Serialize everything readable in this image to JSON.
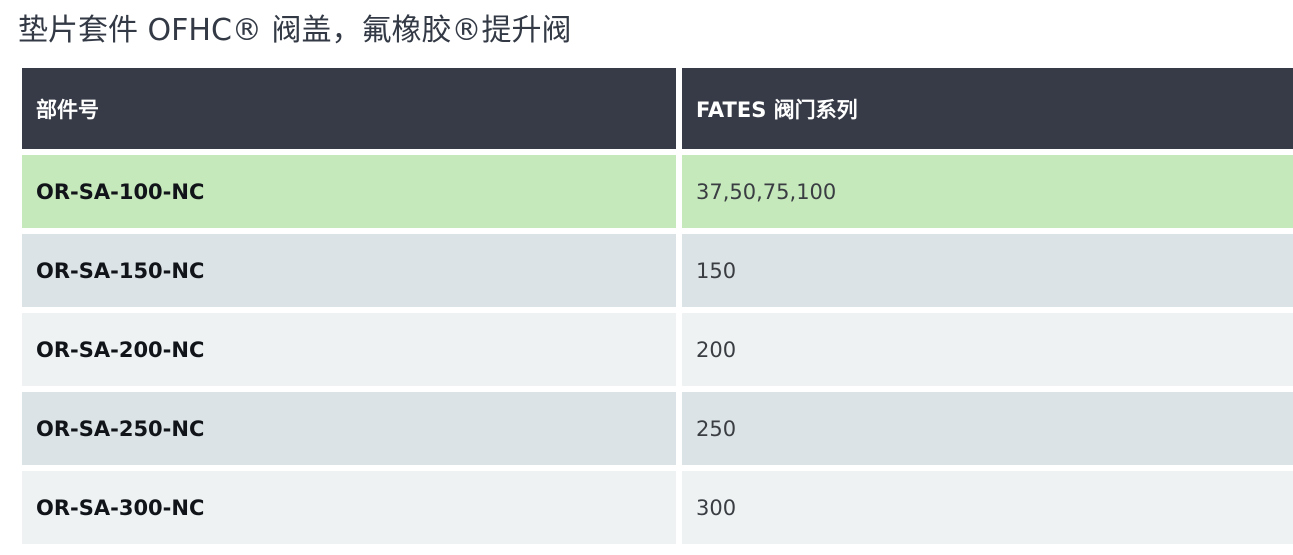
{
  "title": "垫片套件 OFHC® 阀盖，氟橡胶®提升阀",
  "table": {
    "headers": [
      "部件号",
      "FATES 阀门系列"
    ],
    "rows": [
      {
        "part": "OR-SA-100-NC",
        "series": "37,50,75,100",
        "highlighted": true
      },
      {
        "part": "OR-SA-150-NC",
        "series": "150",
        "highlighted": false
      },
      {
        "part": "OR-SA-200-NC",
        "series": "200",
        "highlighted": false
      },
      {
        "part": "OR-SA-250-NC",
        "series": "250",
        "highlighted": false
      },
      {
        "part": "OR-SA-300-NC",
        "series": "300",
        "highlighted": false
      }
    ]
  },
  "colors": {
    "header_bg": "#373b47",
    "header_text": "#ffffff",
    "highlight_row": "#c6e9bc",
    "row_even": "#dbe3e6",
    "row_odd": "#eff2f3"
  }
}
